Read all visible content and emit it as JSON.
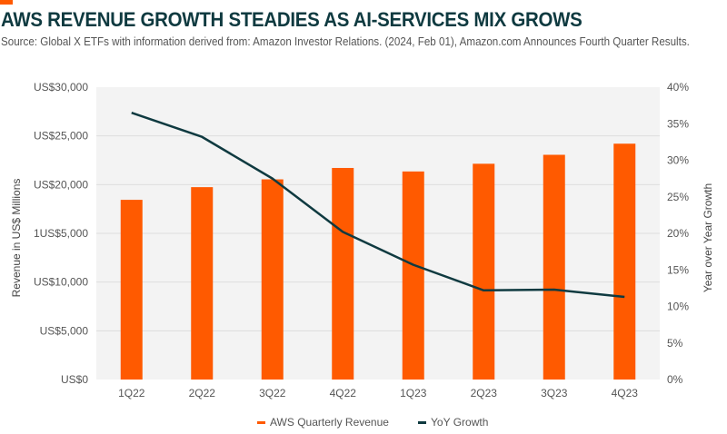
{
  "header": {
    "title": "AWS REVENUE GROWTH STEADIES AS AI-SERVICES MIX GROWS",
    "source": "Source: Global X ETFs with information derived from: Amazon Investor Relations. (2024, Feb 01), Amazon.com Announces Fourth Quarter Results."
  },
  "colors": {
    "accent": "#ff5a00",
    "bar": "#ff5a00",
    "line": "#0f3a40",
    "plot_bg": "#f3f3f3",
    "grid": "#dddddd"
  },
  "chart_data": {
    "type": "bar",
    "title": "AWS REVENUE GROWTH STEADIES AS AI-SERVICES MIX GROWS",
    "categories": [
      "1Q22",
      "2Q22",
      "3Q22",
      "4Q22",
      "1Q23",
      "2Q23",
      "3Q23",
      "4Q23"
    ],
    "series": [
      {
        "name": "AWS Quarterly Revenue",
        "type": "bar",
        "axis": "left",
        "values": [
          18440,
          19740,
          20540,
          21710,
          21350,
          22140,
          23060,
          24200
        ]
      },
      {
        "name": "YoY Growth",
        "type": "line",
        "axis": "right",
        "values": [
          36.5,
          33.2,
          27.5,
          20.2,
          15.7,
          12.2,
          12.3,
          11.3
        ]
      }
    ],
    "xlabel": "",
    "ylabel": "Revenue in US$ Millions",
    "y2label": "Year over Year Growth",
    "ylim": [
      0,
      30000
    ],
    "y2lim": [
      0,
      40
    ],
    "yticks": [
      "US$0",
      "US$5,000",
      "US$10,000",
      "1US$5,000",
      "US$20,000",
      "US$25,000",
      "US$30,000"
    ],
    "y2ticks": [
      "0%",
      "5%",
      "10%",
      "15%",
      "20%",
      "25%",
      "30%",
      "35%",
      "40%"
    ],
    "grid": true,
    "legend": "bottom-center"
  }
}
